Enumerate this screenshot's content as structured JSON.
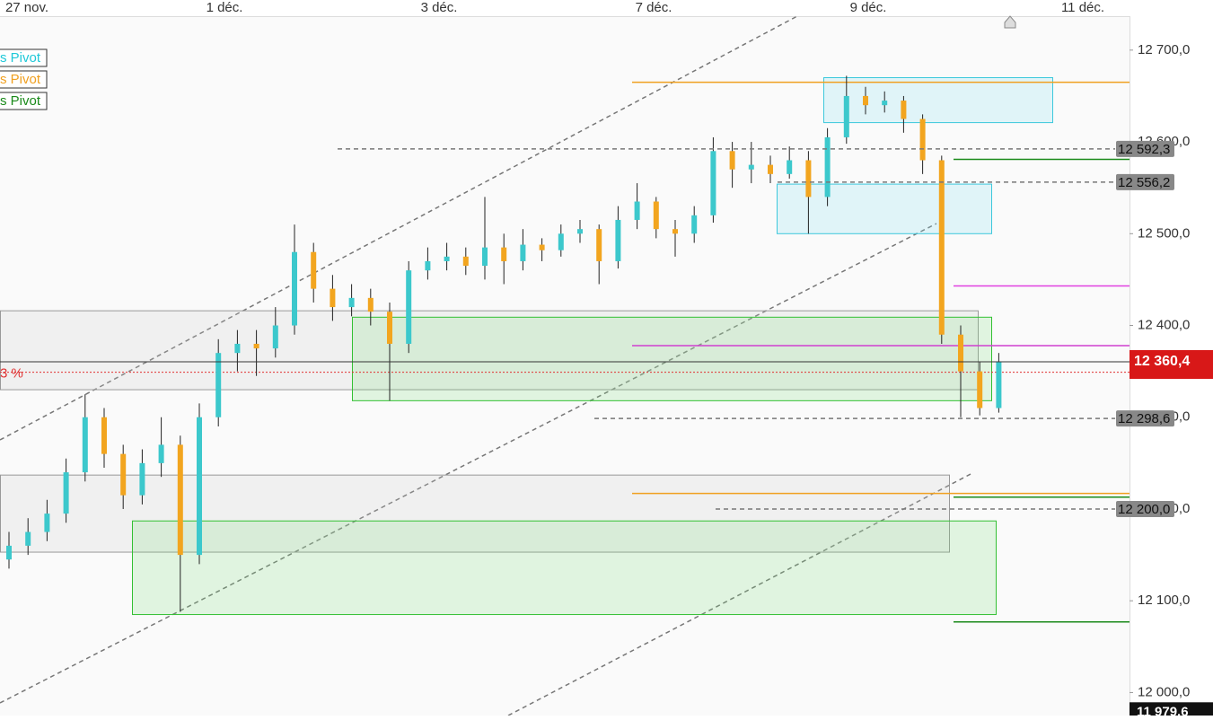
{
  "chart_data": {
    "type": "candlestick",
    "x_labels": [
      "27 nov.",
      "1 déc.",
      "3 déc.",
      "7 déc.",
      "9 déc.",
      "11 déc."
    ],
    "legend": [
      {
        "name": "s Pivot",
        "color": "#1fc8d8"
      },
      {
        "name": "s Pivot",
        "color": "#f0a020"
      },
      {
        "name": "s Pivot",
        "color": "#1a8a1a"
      }
    ],
    "ylim": [
      11975,
      12737
    ],
    "yticks": [
      {
        "value": 12000,
        "label": "12 000,0"
      },
      {
        "value": 12100,
        "label": "12 100,0"
      },
      {
        "value": 12200,
        "label": "12 200,0"
      },
      {
        "value": 12300,
        "label": "12 300,0"
      },
      {
        "value": 12400,
        "label": "12 400,0"
      },
      {
        "value": 12500,
        "label": "12 500,0"
      },
      {
        "value": 12600,
        "label": "12 600,0"
      },
      {
        "value": 12700,
        "label": "12 700,0"
      }
    ],
    "up_color": "#3cc8cc",
    "down_color": "#f2a51f",
    "open": [
      12145,
      12160,
      12175,
      12195,
      12240,
      12300,
      12260,
      12215,
      12250,
      12270,
      12150,
      12300,
      12370,
      12380,
      12375,
      12400,
      12480,
      12440,
      12420,
      12430,
      12415,
      12380,
      12460,
      12470,
      12475,
      12465,
      12485,
      12470,
      12488,
      12482,
      12500,
      12505,
      12470,
      12515,
      12535,
      12505,
      12500,
      12520,
      12590,
      12570,
      12575,
      12565,
      12580,
      12540,
      12605,
      12650,
      12640,
      12645,
      12625,
      12580,
      12390,
      12350,
      12310
    ],
    "high": [
      12175,
      12190,
      12210,
      12255,
      12325,
      12310,
      12270,
      12265,
      12300,
      12280,
      12315,
      12385,
      12395,
      12395,
      12420,
      12510,
      12490,
      12455,
      12445,
      12440,
      12425,
      12470,
      12485,
      12490,
      12485,
      12540,
      12500,
      12505,
      12495,
      12510,
      12515,
      12510,
      12530,
      12555,
      12540,
      12515,
      12530,
      12605,
      12600,
      12600,
      12585,
      12595,
      12590,
      12615,
      12672,
      12660,
      12655,
      12650,
      12630,
      12585,
      12400,
      12360,
      12370
    ],
    "low": [
      12135,
      12150,
      12165,
      12185,
      12230,
      12245,
      12200,
      12205,
      12235,
      12088,
      12140,
      12290,
      12350,
      12345,
      12365,
      12390,
      12425,
      12405,
      12410,
      12400,
      12318,
      12370,
      12450,
      12460,
      12455,
      12450,
      12445,
      12460,
      12470,
      12475,
      12490,
      12445,
      12462,
      12505,
      12495,
      12475,
      12490,
      12512,
      12550,
      12555,
      12555,
      12560,
      12500,
      12530,
      12598,
      12630,
      12632,
      12610,
      12565,
      12380,
      12300,
      12302,
      12305
    ],
    "close": [
      12160,
      12175,
      12195,
      12240,
      12300,
      12260,
      12215,
      12250,
      12270,
      12150,
      12300,
      12370,
      12380,
      12375,
      12400,
      12480,
      12440,
      12420,
      12430,
      12415,
      12380,
      12460,
      12470,
      12475,
      12465,
      12485,
      12470,
      12488,
      12482,
      12500,
      12505,
      12470,
      12515,
      12535,
      12505,
      12500,
      12520,
      12590,
      12570,
      12575,
      12565,
      12580,
      12540,
      12605,
      12650,
      12640,
      12645,
      12625,
      12580,
      12390,
      12350,
      12310,
      12360.4
    ],
    "zones": [
      {
        "top": 12416,
        "bottom": 12330,
        "color": "gray"
      },
      {
        "top": 12237,
        "bottom": 12153,
        "color": "gray"
      },
      {
        "top": 12670,
        "bottom": 12621,
        "color": "cyan"
      },
      {
        "top": 12554,
        "bottom": 12500,
        "color": "cyan"
      },
      {
        "top": 12409,
        "bottom": 12318,
        "color": "green"
      },
      {
        "top": 12187,
        "bottom": 12085,
        "color": "green"
      }
    ],
    "levels": [
      {
        "value": 12665,
        "color": "#f0a020"
      },
      {
        "value": 12378,
        "color": "#d040d0"
      },
      {
        "value": 12217,
        "color": "#f0a020"
      },
      {
        "value": 12443,
        "color": "#e040e0"
      },
      {
        "value": 12581,
        "color": "#1a8a1a"
      },
      {
        "value": 12213,
        "color": "#1a8a1a"
      },
      {
        "value": 12077,
        "color": "#1a8a1a"
      }
    ],
    "price_tags": [
      {
        "value": 12592.3,
        "label": "12 592,3"
      },
      {
        "value": 12556.2,
        "label": "12 556,2"
      },
      {
        "value": 12298.6,
        "label": "12 298,6"
      },
      {
        "value": 12200,
        "label": "12 200,0"
      }
    ],
    "last_price": {
      "value": 12360.4,
      "label": "12 360,4"
    },
    "low_price": {
      "value": 11979.6,
      "label": "11 979,6"
    },
    "ref_line": {
      "value": 12349,
      "label": "3 %"
    }
  }
}
